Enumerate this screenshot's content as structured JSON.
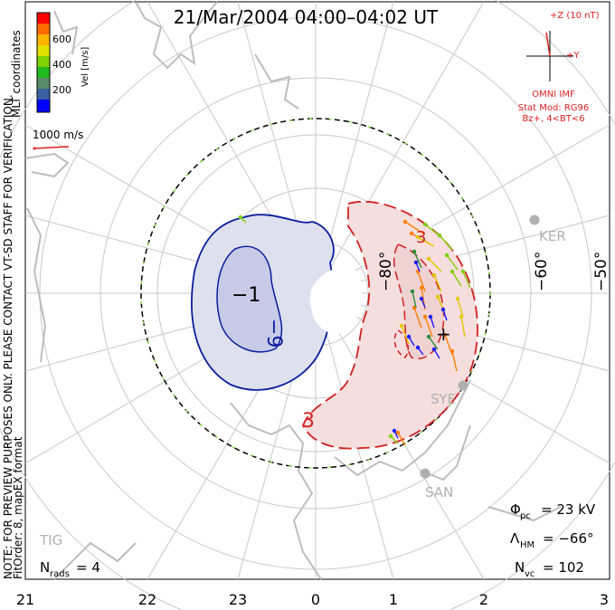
{
  "title": "21/Mar/2004 04:00–04:02 UT",
  "colorbar": {
    "label": "Vel [m/s]",
    "ticks": [
      "600",
      "400",
      "200"
    ],
    "colors": [
      "#ff0000",
      "#ff6a00",
      "#ffb400",
      "#e0e000",
      "#7fd000",
      "#22bb22",
      "#5a8a6a",
      "#3a60a0",
      "#0000ff"
    ]
  },
  "coord_label": "MLT coordinates",
  "vector_ref": "1000 m/s",
  "imf": {
    "plus_z": "+Z (10 nT)",
    "plus_y": "+Y",
    "source": "OMNI IMF",
    "stat_mod": "Stat Mod: RG96",
    "condition": "Bz+, 4<BT<6"
  },
  "note": "NOTE: FOR PREVIEW PURPOSES ONLY. PLEASE CONTACT VT-SD STAFF FOR VERIFICATION.",
  "fit_order": "FitOrder: 8, mapEX format",
  "lat_labels": [
    "−80°",
    "−60°",
    "−50°"
  ],
  "stations": [
    "KER",
    "SYE",
    "SAN",
    "TIG"
  ],
  "contour_labels": [
    "−1",
    "−9",
    "+",
    "3",
    "3"
  ],
  "stats": {
    "phi_label": "Φ",
    "phi_sub": "pc",
    "phi_value": "= 23 kV",
    "lambda_label": "Λ",
    "lambda_sub": "HM",
    "lambda_value": "= −66°",
    "nvc_label": "N",
    "nvc_sub": "vc",
    "nvc_value": "= 102",
    "nrads_label": "N",
    "nrads_sub": "rads",
    "nrads_value": "= 4"
  },
  "mlt_ticks": [
    "21",
    "22",
    "23",
    "0",
    "1",
    "2",
    "3"
  ]
}
